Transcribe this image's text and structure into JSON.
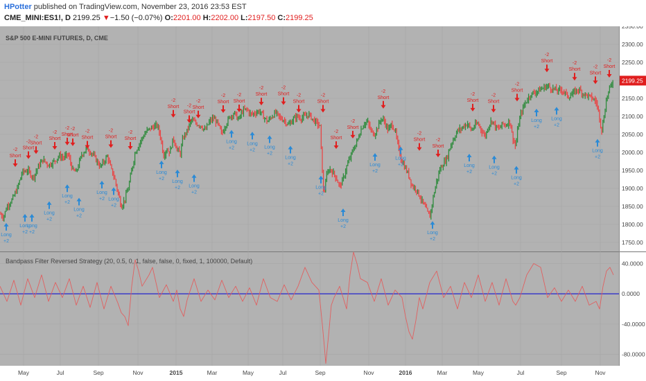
{
  "header": {
    "author": "HPotter",
    "published_text": "published on TradingView.com, November 23, 2016 23:53 EST",
    "symbol": "CME_MINI:ES1!, D",
    "last": "2199.25",
    "change": "−1.50 (−0.07%)",
    "open_label": "O:",
    "open": "2201.00",
    "high_label": "H:",
    "high": "2202.00",
    "low_label": "L:",
    "low": "2197.50",
    "close_label": "C:",
    "close": "2199.25"
  },
  "chart_data": [
    {
      "type": "candlestick",
      "title": "S&P 500 E-MINI FUTURES, D, CME",
      "ylim": [
        1725,
        2350
      ],
      "y_ticks": [
        "2350.00",
        "2300.00",
        "2250.00",
        "2200.00",
        "2150.00",
        "2100.00",
        "2050.00",
        "2000.00",
        "1950.00",
        "1900.00",
        "1850.00",
        "1800.00",
        "1750.00"
      ],
      "price_label": "2199.25",
      "price_line": [
        [
          0,
          1830
        ],
        [
          5,
          1820
        ],
        [
          10,
          1850
        ],
        [
          18,
          1870
        ],
        [
          25,
          1900
        ],
        [
          32,
          1945
        ],
        [
          40,
          1950
        ],
        [
          48,
          1930
        ],
        [
          55,
          1960
        ],
        [
          62,
          1980
        ],
        [
          70,
          1965
        ],
        [
          78,
          1975
        ],
        [
          85,
          1990
        ],
        [
          92,
          1985
        ],
        [
          98,
          1995
        ],
        [
          105,
          1950
        ],
        [
          110,
          1945
        ],
        [
          118,
          1995
        ],
        [
          125,
          2010
        ],
        [
          132,
          2000
        ],
        [
          140,
          1975
        ],
        [
          145,
          1960
        ],
        [
          150,
          1975
        ],
        [
          155,
          1990
        ],
        [
          160,
          1955
        ],
        [
          165,
          1930
        ],
        [
          170,
          1890
        ],
        [
          175,
          1850
        ],
        [
          180,
          1870
        ],
        [
          185,
          1900
        ],
        [
          190,
          1950
        ],
        [
          195,
          2000
        ],
        [
          200,
          2020
        ],
        [
          205,
          2040
        ],
        [
          212,
          2060
        ],
        [
          220,
          2070
        ],
        [
          227,
          2075
        ],
        [
          232,
          2040
        ],
        [
          236,
          1990
        ],
        [
          240,
          2010
        ],
        [
          245,
          2000
        ],
        [
          250,
          2040
        ],
        [
          255,
          2010
        ],
        [
          260,
          1995
        ],
        [
          264,
          2040
        ],
        [
          270,
          2060
        ],
        [
          276,
          2090
        ],
        [
          283,
          2080
        ],
        [
          290,
          2075
        ],
        [
          296,
          2060
        ],
        [
          302,
          2085
        ],
        [
          308,
          2095
        ],
        [
          314,
          2080
        ],
        [
          320,
          2050
        ],
        [
          325,
          2075
        ],
        [
          332,
          2100
        ],
        [
          338,
          2110
        ],
        [
          344,
          2090
        ],
        [
          350,
          2115
        ],
        [
          356,
          2120
        ],
        [
          362,
          2105
        ],
        [
          368,
          2110
        ],
        [
          374,
          2115
        ],
        [
          380,
          2100
        ],
        [
          386,
          2085
        ],
        [
          392,
          2100
        ],
        [
          398,
          2110
        ],
        [
          404,
          2095
        ],
        [
          410,
          2090
        ],
        [
          416,
          2075
        ],
        [
          422,
          2090
        ],
        [
          428,
          2100
        ],
        [
          434,
          2095
        ],
        [
          440,
          2100
        ],
        [
          446,
          2105
        ],
        [
          452,
          2090
        ],
        [
          458,
          2080
        ],
        [
          462,
          2070
        ],
        [
          464,
          1985
        ],
        [
          467,
          1880
        ],
        [
          470,
          1925
        ],
        [
          475,
          1955
        ],
        [
          480,
          1945
        ],
        [
          485,
          1930
        ],
        [
          490,
          1905
        ],
        [
          495,
          1925
        ],
        [
          500,
          1960
        ],
        [
          505,
          1985
        ],
        [
          510,
          2010
        ],
        [
          515,
          2030
        ],
        [
          520,
          2060
        ],
        [
          525,
          2080
        ],
        [
          530,
          2085
        ],
        [
          535,
          2060
        ],
        [
          540,
          2050
        ],
        [
          545,
          2070
        ],
        [
          550,
          2095
        ],
        [
          555,
          2085
        ],
        [
          560,
          2060
        ],
        [
          565,
          2080
        ],
        [
          570,
          2060
        ],
        [
          575,
          2010
        ],
        [
          580,
          1975
        ],
        [
          585,
          1955
        ],
        [
          590,
          1935
        ],
        [
          595,
          1905
        ],
        [
          600,
          1900
        ],
        [
          605,
          1880
        ],
        [
          610,
          1860
        ],
        [
          615,
          1840
        ],
        [
          620,
          1820
        ],
        [
          625,
          1875
        ],
        [
          630,
          1920
        ],
        [
          635,
          1955
        ],
        [
          640,
          1970
        ],
        [
          645,
          1985
        ],
        [
          650,
          2020
        ],
        [
          655,
          2040
        ],
        [
          660,
          2060
        ],
        [
          665,
          2065
        ],
        [
          670,
          2075
        ],
        [
          675,
          2080
        ],
        [
          680,
          2060
        ],
        [
          685,
          2075
        ],
        [
          690,
          2080
        ],
        [
          695,
          2060
        ],
        [
          700,
          2045
        ],
        [
          705,
          2075
        ],
        [
          710,
          2090
        ],
        [
          715,
          2070
        ],
        [
          720,
          2065
        ],
        [
          725,
          2080
        ],
        [
          730,
          2075
        ],
        [
          735,
          2090
        ],
        [
          740,
          2040
        ],
        [
          744,
          2015
        ],
        [
          748,
          2080
        ],
        [
          752,
          2110
        ],
        [
          756,
          2130
        ],
        [
          760,
          2145
        ],
        [
          765,
          2160
        ],
        [
          770,
          2165
        ],
        [
          775,
          2170
        ],
        [
          780,
          2175
        ],
        [
          785,
          2180
        ],
        [
          790,
          2185
        ],
        [
          795,
          2178
        ],
        [
          800,
          2175
        ],
        [
          805,
          2170
        ],
        [
          810,
          2175
        ],
        [
          815,
          2165
        ],
        [
          820,
          2155
        ],
        [
          825,
          2160
        ],
        [
          830,
          2170
        ],
        [
          835,
          2175
        ],
        [
          840,
          2165
        ],
        [
          845,
          2160
        ],
        [
          850,
          2155
        ],
        [
          855,
          2150
        ],
        [
          860,
          2140
        ],
        [
          864,
          2110
        ],
        [
          868,
          2060
        ],
        [
          871,
          2095
        ],
        [
          875,
          2150
        ],
        [
          880,
          2180
        ],
        [
          885,
          2200
        ]
      ],
      "short_signals": [
        [
          22,
          1950
        ],
        [
          41,
          1972
        ],
        [
          52,
          1986
        ],
        [
          79,
          1998
        ],
        [
          97,
          2010
        ],
        [
          105,
          2008
        ],
        [
          126,
          2001
        ],
        [
          160,
          2003
        ],
        [
          188,
          1998
        ],
        [
          250,
          2087
        ],
        [
          273,
          2072
        ],
        [
          286,
          2085
        ],
        [
          322,
          2100
        ],
        [
          345,
          2102
        ],
        [
          377,
          2121
        ],
        [
          409,
          2122
        ],
        [
          431,
          2101
        ],
        [
          466,
          2101
        ],
        [
          485,
          2000
        ],
        [
          509,
          2029
        ],
        [
          553,
          2112
        ],
        [
          605,
          1995
        ],
        [
          632,
          1977
        ],
        [
          682,
          2104
        ],
        [
          712,
          2101
        ],
        [
          746,
          2132
        ],
        [
          789,
          2213
        ],
        [
          829,
          2190
        ],
        [
          859,
          2180
        ],
        [
          879,
          2198
        ]
      ],
      "long_signals": [
        [
          9,
          1808
        ],
        [
          36,
          1833
        ],
        [
          46,
          1833
        ],
        [
          71,
          1868
        ],
        [
          97,
          1915
        ],
        [
          114,
          1878
        ],
        [
          147,
          1925
        ],
        [
          164,
          1907
        ],
        [
          233,
          1981
        ],
        [
          256,
          1956
        ],
        [
          280,
          1943
        ],
        [
          334,
          2066
        ],
        [
          364,
          2061
        ],
        [
          389,
          2051
        ],
        [
          419,
          2022
        ],
        [
          463,
          1939
        ],
        [
          495,
          1848
        ],
        [
          541,
          2002
        ],
        [
          578,
          2020
        ],
        [
          624,
          1813
        ],
        [
          677,
          2000
        ],
        [
          713,
          1995
        ],
        [
          745,
          1966
        ],
        [
          774,
          2125
        ],
        [
          803,
          2130
        ],
        [
          862,
          2041
        ]
      ]
    },
    {
      "type": "line",
      "title": "Bandpass Filter Reversed Strategy (20, 0.5, 0, 1, false, false, 0, fixed, 1, 100000, Default)",
      "ylim": [
        -95,
        55
      ],
      "y_ticks": [
        "40.0000",
        "0.0000",
        "-40.0000",
        "-80.0000"
      ],
      "zero_line": 0,
      "series": [
        [
          0,
          10
        ],
        [
          10,
          -10
        ],
        [
          20,
          18
        ],
        [
          30,
          -15
        ],
        [
          40,
          20
        ],
        [
          50,
          -5
        ],
        [
          60,
          25
        ],
        [
          70,
          -10
        ],
        [
          80,
          15
        ],
        [
          90,
          -5
        ],
        [
          100,
          20
        ],
        [
          110,
          -15
        ],
        [
          120,
          10
        ],
        [
          130,
          -18
        ],
        [
          140,
          15
        ],
        [
          150,
          -20
        ],
        [
          160,
          10
        ],
        [
          170,
          -12
        ],
        [
          175,
          -25
        ],
        [
          180,
          -30
        ],
        [
          185,
          -42
        ],
        [
          190,
          10
        ],
        [
          195,
          45
        ],
        [
          200,
          30
        ],
        [
          205,
          10
        ],
        [
          215,
          25
        ],
        [
          220,
          35
        ],
        [
          230,
          -5
        ],
        [
          240,
          12
        ],
        [
          250,
          -10
        ],
        [
          255,
          5
        ],
        [
          260,
          -20
        ],
        [
          265,
          -30
        ],
        [
          270,
          -8
        ],
        [
          280,
          20
        ],
        [
          290,
          -10
        ],
        [
          300,
          5
        ],
        [
          310,
          -8
        ],
        [
          320,
          18
        ],
        [
          330,
          -5
        ],
        [
          340,
          10
        ],
        [
          350,
          -10
        ],
        [
          360,
          8
        ],
        [
          370,
          -15
        ],
        [
          380,
          20
        ],
        [
          390,
          -5
        ],
        [
          400,
          -10
        ],
        [
          410,
          12
        ],
        [
          420,
          -8
        ],
        [
          430,
          10
        ],
        [
          440,
          35
        ],
        [
          450,
          15
        ],
        [
          460,
          5
        ],
        [
          465,
          -40
        ],
        [
          468,
          -70
        ],
        [
          470,
          -92
        ],
        [
          474,
          -55
        ],
        [
          478,
          -15
        ],
        [
          482,
          -5
        ],
        [
          490,
          10
        ],
        [
          500,
          -20
        ],
        [
          505,
          25
        ],
        [
          510,
          55
        ],
        [
          515,
          40
        ],
        [
          520,
          20
        ],
        [
          530,
          15
        ],
        [
          540,
          -10
        ],
        [
          550,
          20
        ],
        [
          560,
          -15
        ],
        [
          570,
          5
        ],
        [
          580,
          -5
        ],
        [
          585,
          -30
        ],
        [
          590,
          -50
        ],
        [
          595,
          -60
        ],
        [
          600,
          -35
        ],
        [
          605,
          -5
        ],
        [
          610,
          -20
        ],
        [
          620,
          15
        ],
        [
          630,
          30
        ],
        [
          640,
          -5
        ],
        [
          650,
          10
        ],
        [
          660,
          -20
        ],
        [
          670,
          15
        ],
        [
          680,
          -5
        ],
        [
          690,
          25
        ],
        [
          700,
          -10
        ],
        [
          710,
          15
        ],
        [
          720,
          -15
        ],
        [
          730,
          20
        ],
        [
          740,
          -10
        ],
        [
          744,
          -15
        ],
        [
          750,
          -5
        ],
        [
          755,
          10
        ],
        [
          760,
          25
        ],
        [
          770,
          40
        ],
        [
          780,
          35
        ],
        [
          790,
          -5
        ],
        [
          800,
          8
        ],
        [
          810,
          -10
        ],
        [
          820,
          5
        ],
        [
          830,
          -10
        ],
        [
          840,
          10
        ],
        [
          850,
          -15
        ],
        [
          860,
          -10
        ],
        [
          865,
          -20
        ],
        [
          870,
          10
        ],
        [
          875,
          30
        ],
        [
          880,
          35
        ],
        [
          885,
          25
        ]
      ]
    }
  ],
  "signal_text": {
    "short_qty": "-2",
    "short_label": "Short",
    "long_label": "Long",
    "long_qty": "+2"
  },
  "x_axis": [
    {
      "label": "May",
      "x": 34
    },
    {
      "label": "Jul",
      "x": 87
    },
    {
      "label": "Sep",
      "x": 142
    },
    {
      "label": "Nov",
      "x": 199
    },
    {
      "label": "2015",
      "x": 254,
      "bold": true
    },
    {
      "label": "Mar",
      "x": 306
    },
    {
      "label": "May",
      "x": 358
    },
    {
      "label": "Jul",
      "x": 408
    },
    {
      "label": "Sep",
      "x": 462
    },
    {
      "label": "Nov",
      "x": 532
    },
    {
      "label": "2016",
      "x": 585,
      "bold": true
    },
    {
      "label": "Mar",
      "x": 638
    },
    {
      "label": "May",
      "x": 690
    },
    {
      "label": "Jul",
      "x": 751
    },
    {
      "label": "Sep",
      "x": 810
    },
    {
      "label": "Nov",
      "x": 866
    }
  ],
  "colors": {
    "pane_bg": "#b2b2b2",
    "grid": "#a6a6a6",
    "up": "#2e8b3c",
    "down": "#e84545",
    "short": "#e01e1e",
    "long": "#2a8ad6",
    "osc": "#e06060",
    "zero": "#2222cc"
  }
}
